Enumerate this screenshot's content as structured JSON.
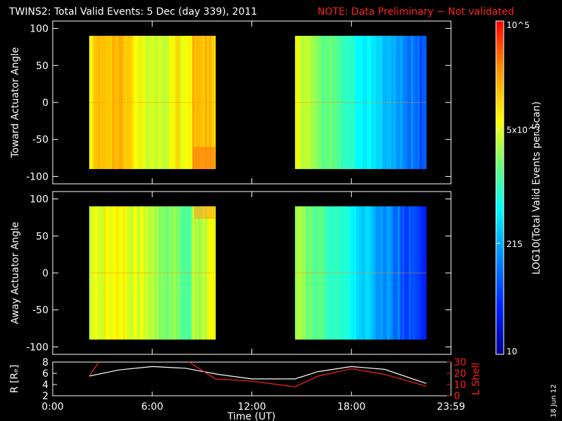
{
  "header": {
    "title": "TWINS2: Total Valid Events:  5 Dec (day 339), 2011",
    "note": "NOTE: Data Preliminary − Not validated",
    "note_color": "#ff2020"
  },
  "footer": {
    "date_stamp": "18 Jun 12"
  },
  "chart_data": [
    {
      "type": "heatmap",
      "panel": "toward",
      "ylabel": "Toward Actuator Angle",
      "ylim": [
        -110,
        110
      ],
      "yticks": [
        100,
        50,
        0,
        -50,
        -100
      ],
      "xlim_hours": [
        0,
        24
      ],
      "blocks": [
        {
          "start_hour": 2.2,
          "end_hour": 9.8,
          "angle_range": [
            -90,
            90
          ],
          "dominant_color": "yellow-orange"
        },
        {
          "start_hour": 14.6,
          "end_hour": 22.5,
          "angle_range": [
            -90,
            90
          ],
          "dominant_color": "yellow-to-blue"
        }
      ]
    },
    {
      "type": "heatmap",
      "panel": "away",
      "ylabel": "Away Actuator Angle",
      "ylim": [
        -110,
        110
      ],
      "yticks": [
        100,
        50,
        0,
        -50,
        -100
      ],
      "xlim_hours": [
        0,
        24
      ],
      "blocks": [
        {
          "start_hour": 2.2,
          "end_hour": 9.8,
          "angle_range": [
            -90,
            90
          ],
          "dominant_color": "yellow-green"
        },
        {
          "start_hour": 14.6,
          "end_hour": 22.5,
          "angle_range": [
            -90,
            90
          ],
          "dominant_color": "green-to-blue"
        }
      ]
    },
    {
      "type": "line",
      "panel": "orbit",
      "ylabel_left": "R [Rₑ]",
      "ylabel_right": "L Shell",
      "ylim_left": [
        2,
        8
      ],
      "yticks_left": [
        8,
        6,
        4,
        2
      ],
      "ylim_right": [
        0,
        30
      ],
      "yticks_right": [
        30,
        20,
        10,
        0
      ],
      "xlabel": "Time (UT)",
      "xtick_labels": [
        "0:00",
        "6:00",
        "12:00",
        "18:00",
        "23:59"
      ],
      "xtick_hours": [
        0,
        6,
        12,
        18,
        24
      ],
      "series": [
        {
          "color": "#ffffff",
          "axis": "left",
          "x": [
            2.2,
            4,
            6,
            8,
            10,
            12,
            14.6,
            16,
            18,
            20,
            22.5
          ],
          "y": [
            5.5,
            6.6,
            7.2,
            6.9,
            5.8,
            5.0,
            5.0,
            6.3,
            7.2,
            6.7,
            4.2
          ]
        },
        {
          "color": "#ff2020",
          "axis": "left",
          "x": [
            2.2,
            3.0,
            3.1,
            7.5,
            7.7,
            9.8,
            12,
            14.6,
            16,
            18,
            20,
            22.5
          ],
          "y": [
            5.5,
            9.0,
            9.0,
            9.0,
            9.0,
            5.0,
            4.6,
            3.6,
            5.5,
            6.8,
            5.8,
            3.7
          ]
        }
      ]
    },
    {
      "type": "colorbar",
      "label": "LOG10(Total Valid Events per Scan)",
      "tick_labels": [
        "10",
        "215",
        "5x10^3",
        "10^5"
      ],
      "tick_log_values": [
        1,
        2.332,
        3.699,
        5
      ],
      "range_log": [
        1,
        5
      ],
      "colors": [
        "#00008c",
        "#0020ff",
        "#0090ff",
        "#00ffff",
        "#60ff80",
        "#ffff00",
        "#ff9000",
        "#ff0000"
      ]
    }
  ]
}
